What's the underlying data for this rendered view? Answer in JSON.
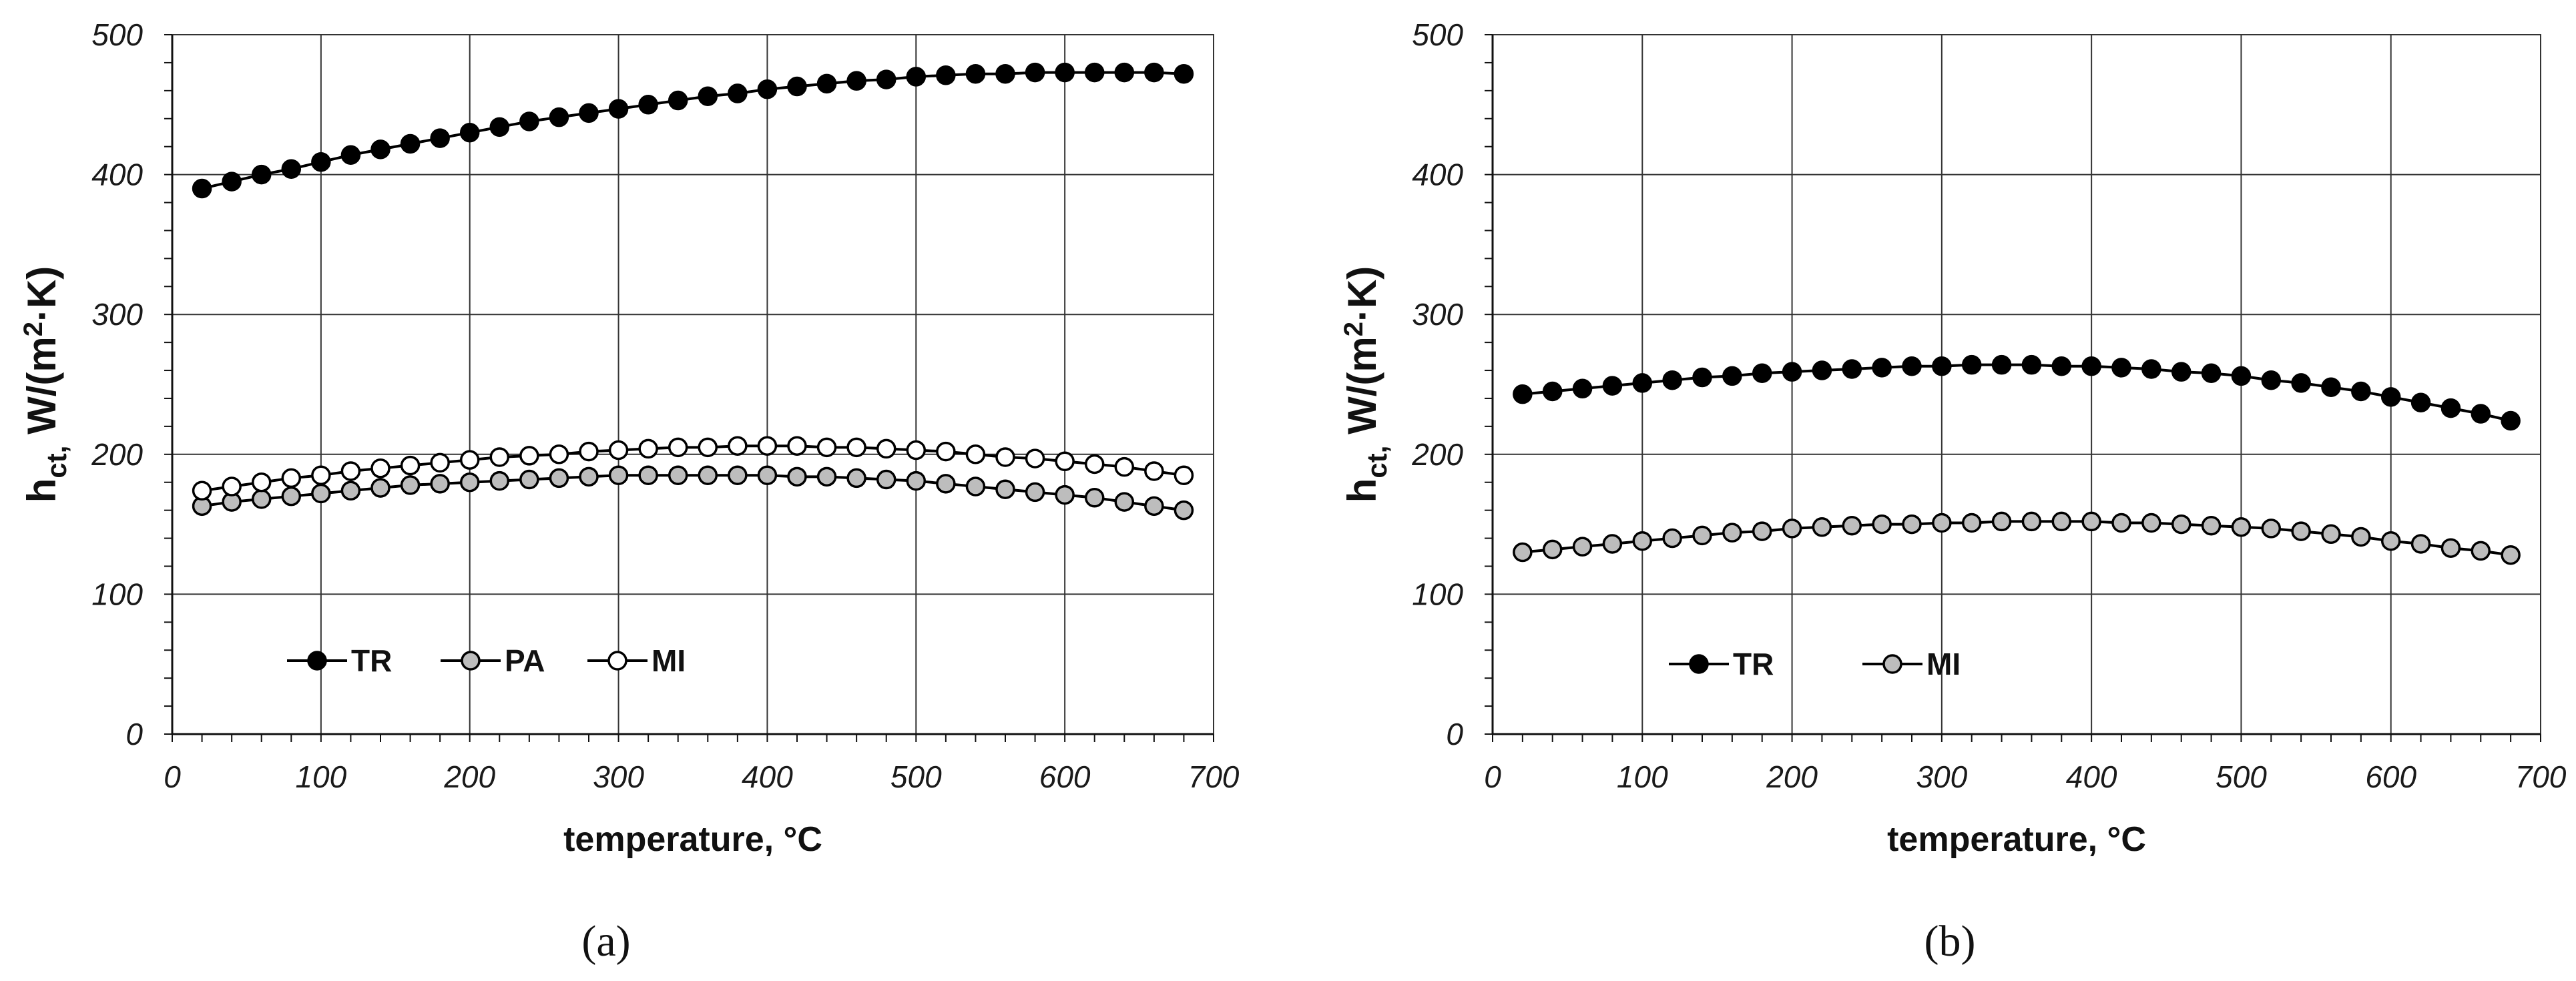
{
  "chart_data": [
    {
      "panel": "a",
      "panel_label": "(a)",
      "type": "line",
      "xlabel": "temperature, °C",
      "ylabel_main": "h",
      "ylabel_sub": "ct,",
      "ylabel_rest": " W/(m",
      "ylabel_sup": "2",
      "ylabel_end": "·K)",
      "xlim": [
        0,
        700
      ],
      "ylim": [
        0,
        500
      ],
      "xticks": [
        0,
        100,
        200,
        300,
        400,
        500,
        600,
        700
      ],
      "yticks": [
        0,
        100,
        200,
        300,
        400,
        500
      ],
      "grid": true,
      "legend_position": "bottom-left",
      "x": [
        20,
        40,
        60,
        80,
        100,
        120,
        140,
        160,
        180,
        200,
        220,
        240,
        260,
        280,
        300,
        320,
        340,
        360,
        380,
        400,
        420,
        440,
        460,
        480,
        500,
        520,
        540,
        560,
        580,
        600,
        620,
        640,
        660,
        680
      ],
      "series": [
        {
          "name": "TR",
          "marker_fill": "#000000",
          "values": [
            390,
            395,
            400,
            404,
            409,
            414,
            418,
            422,
            426,
            430,
            434,
            438,
            441,
            444,
            447,
            450,
            453,
            456,
            458,
            461,
            463,
            465,
            467,
            468,
            470,
            471,
            472,
            472,
            473,
            473,
            473,
            473,
            473,
            472
          ]
        },
        {
          "name": "PA",
          "marker_fill": "#bdbdbd",
          "values": [
            163,
            166,
            168,
            170,
            172,
            174,
            176,
            178,
            179,
            180,
            181,
            182,
            183,
            184,
            185,
            185,
            185,
            185,
            185,
            185,
            184,
            184,
            183,
            182,
            181,
            179,
            177,
            175,
            173,
            171,
            169,
            166,
            163,
            160
          ]
        },
        {
          "name": "MI",
          "marker_fill": "#ffffff",
          "values": [
            174,
            177,
            180,
            183,
            185,
            188,
            190,
            192,
            194,
            196,
            198,
            199,
            200,
            202,
            203,
            204,
            205,
            205,
            206,
            206,
            206,
            205,
            205,
            204,
            203,
            202,
            200,
            198,
            197,
            195,
            193,
            191,
            188,
            185
          ]
        }
      ]
    },
    {
      "panel": "b",
      "panel_label": "(b)",
      "type": "line",
      "xlabel": "temperature, °C",
      "ylabel_main": "h",
      "ylabel_sub": "ct,",
      "ylabel_rest": " W/(m",
      "ylabel_sup": "2",
      "ylabel_end": "·K)",
      "xlim": [
        0,
        700
      ],
      "ylim": [
        0,
        500
      ],
      "xticks": [
        0,
        100,
        200,
        300,
        400,
        500,
        600,
        700
      ],
      "yticks": [
        0,
        100,
        200,
        300,
        400,
        500
      ],
      "grid": true,
      "legend_position": "bottom-left",
      "x": [
        20,
        40,
        60,
        80,
        100,
        120,
        140,
        160,
        180,
        200,
        220,
        240,
        260,
        280,
        300,
        320,
        340,
        360,
        380,
        400,
        420,
        440,
        460,
        480,
        500,
        520,
        540,
        560,
        580,
        600,
        620,
        640,
        660,
        680
      ],
      "series": [
        {
          "name": "TR",
          "marker_fill": "#000000",
          "values": [
            243,
            245,
            247,
            249,
            251,
            253,
            255,
            256,
            258,
            259,
            260,
            261,
            262,
            263,
            263,
            264,
            264,
            264,
            263,
            263,
            262,
            261,
            259,
            258,
            256,
            253,
            251,
            248,
            245,
            241,
            237,
            233,
            229,
            224
          ]
        },
        {
          "name": "MI",
          "marker_fill": "#bdbdbd",
          "values": [
            130,
            132,
            134,
            136,
            138,
            140,
            142,
            144,
            145,
            147,
            148,
            149,
            150,
            150,
            151,
            151,
            152,
            152,
            152,
            152,
            151,
            151,
            150,
            149,
            148,
            147,
            145,
            143,
            141,
            138,
            136,
            133,
            131,
            128
          ]
        }
      ]
    }
  ]
}
